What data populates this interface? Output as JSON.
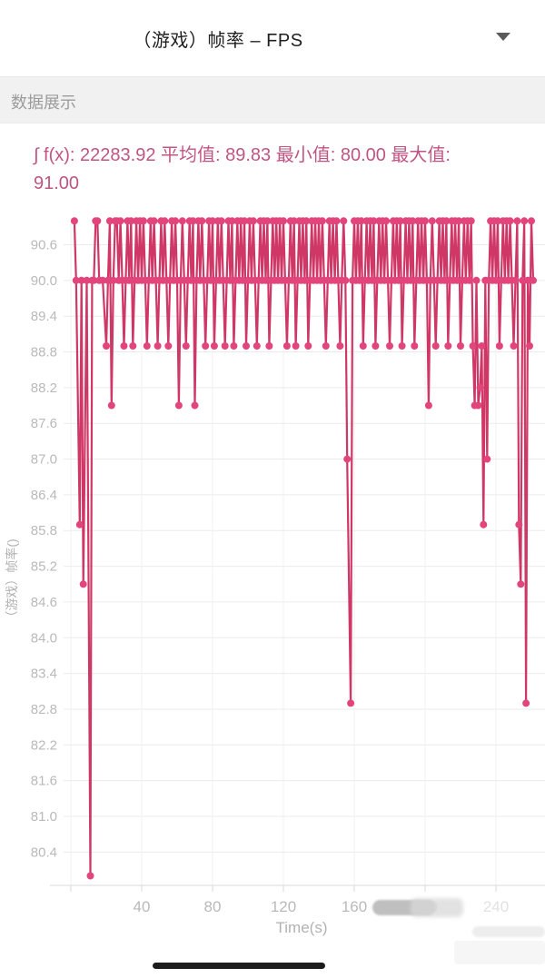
{
  "header": {
    "title": "（游戏）帧率 – FPS",
    "dropdown_icon": "caret-down"
  },
  "section": {
    "label": "数据展示"
  },
  "stats": {
    "integral": "22283.92",
    "average": "89.83",
    "min": "80.00",
    "max": "91.00",
    "display_line1": "∫ f(x): 22283.92 平均值: 89.83 最小值: 80.00 最大值:",
    "display_line2": "91.00"
  },
  "colors": {
    "accent_pink_line": "#cf3766",
    "accent_pink_point": "#e2457c",
    "stats_text": "#c05583",
    "grid_line": "#ebebeb",
    "axis_line": "#d9d9d9",
    "tick_label": "#b9b9b9",
    "faded_tick_label": "#e2e2e2"
  },
  "footer": {
    "home_indicator": true
  },
  "chart_data": {
    "type": "line",
    "title": "",
    "xlabel": "Time(s)",
    "ylabel": "（游戏）帧率()",
    "grid": true,
    "legend": "none",
    "xlim": [
      0,
      268
    ],
    "ylim": [
      79.8,
      91.1
    ],
    "x_ticks": [
      40,
      80,
      120,
      160,
      200,
      240
    ],
    "x_ticks_faded": [
      200,
      240
    ],
    "y_ticks": [
      80.4,
      81.0,
      81.6,
      82.2,
      82.8,
      83.4,
      84.0,
      84.6,
      85.2,
      85.8,
      86.4,
      87.0,
      87.6,
      88.2,
      88.8,
      89.4,
      90.0,
      90.6
    ],
    "line_color": "#cf3766",
    "point_color": "#e2457c",
    "points": [
      [
        2,
        91
      ],
      [
        3,
        90
      ],
      [
        5,
        85.9
      ],
      [
        6,
        90
      ],
      [
        7,
        84.9
      ],
      [
        9,
        90
      ],
      [
        11,
        80
      ],
      [
        12,
        90
      ],
      [
        13,
        90
      ],
      [
        14,
        91
      ],
      [
        15,
        91
      ],
      [
        16,
        90
      ],
      [
        18,
        90
      ],
      [
        20,
        88.9
      ],
      [
        21,
        90
      ],
      [
        22,
        91
      ],
      [
        23,
        87.9
      ],
      [
        24,
        90
      ],
      [
        25,
        91
      ],
      [
        26,
        91
      ],
      [
        27,
        90
      ],
      [
        28,
        91
      ],
      [
        29,
        90
      ],
      [
        30,
        88.9
      ],
      [
        31,
        90
      ],
      [
        32,
        91
      ],
      [
        33,
        90
      ],
      [
        34,
        91
      ],
      [
        35,
        88.9
      ],
      [
        36,
        90
      ],
      [
        37,
        91
      ],
      [
        38,
        90
      ],
      [
        39,
        91
      ],
      [
        40,
        90
      ],
      [
        41,
        91
      ],
      [
        42,
        90
      ],
      [
        43,
        88.9
      ],
      [
        44,
        90
      ],
      [
        45,
        91
      ],
      [
        46,
        90
      ],
      [
        47,
        91
      ],
      [
        48,
        90
      ],
      [
        49,
        88.9
      ],
      [
        50,
        90
      ],
      [
        51,
        91
      ],
      [
        52,
        90
      ],
      [
        53,
        91
      ],
      [
        54,
        90
      ],
      [
        55,
        88.9
      ],
      [
        56,
        90
      ],
      [
        57,
        91
      ],
      [
        58,
        90
      ],
      [
        59,
        91
      ],
      [
        60,
        90
      ],
      [
        61,
        87.9
      ],
      [
        62,
        90
      ],
      [
        63,
        91
      ],
      [
        64,
        90
      ],
      [
        65,
        88.9
      ],
      [
        66,
        90
      ],
      [
        67,
        91
      ],
      [
        68,
        90
      ],
      [
        69,
        91
      ],
      [
        70,
        87.9
      ],
      [
        71,
        90
      ],
      [
        72,
        91
      ],
      [
        73,
        90
      ],
      [
        74,
        91
      ],
      [
        75,
        90
      ],
      [
        76,
        88.9
      ],
      [
        77,
        90
      ],
      [
        78,
        91
      ],
      [
        79,
        90
      ],
      [
        80,
        91
      ],
      [
        81,
        88.9
      ],
      [
        82,
        90
      ],
      [
        83,
        91
      ],
      [
        84,
        90
      ],
      [
        85,
        91
      ],
      [
        86,
        90
      ],
      [
        87,
        88.9
      ],
      [
        88,
        90
      ],
      [
        89,
        91
      ],
      [
        90,
        90
      ],
      [
        91,
        91
      ],
      [
        92,
        88.9
      ],
      [
        93,
        90
      ],
      [
        94,
        91
      ],
      [
        95,
        90
      ],
      [
        96,
        91
      ],
      [
        97,
        90
      ],
      [
        98,
        91
      ],
      [
        99,
        88.9
      ],
      [
        100,
        90
      ],
      [
        101,
        91
      ],
      [
        102,
        90
      ],
      [
        103,
        91
      ],
      [
        104,
        90
      ],
      [
        105,
        88.9
      ],
      [
        106,
        90
      ],
      [
        107,
        91
      ],
      [
        108,
        90
      ],
      [
        109,
        91
      ],
      [
        110,
        90
      ],
      [
        111,
        91
      ],
      [
        112,
        88.9
      ],
      [
        113,
        90
      ],
      [
        114,
        91
      ],
      [
        115,
        90
      ],
      [
        116,
        91
      ],
      [
        117,
        90
      ],
      [
        118,
        91
      ],
      [
        119,
        90
      ],
      [
        120,
        91
      ],
      [
        121,
        90
      ],
      [
        122,
        88.9
      ],
      [
        123,
        90
      ],
      [
        124,
        91
      ],
      [
        125,
        90
      ],
      [
        126,
        91
      ],
      [
        127,
        88.9
      ],
      [
        128,
        90
      ],
      [
        129,
        91
      ],
      [
        130,
        90
      ],
      [
        131,
        91
      ],
      [
        132,
        90
      ],
      [
        133,
        91
      ],
      [
        134,
        88.9
      ],
      [
        135,
        90
      ],
      [
        136,
        91
      ],
      [
        137,
        90
      ],
      [
        138,
        91
      ],
      [
        139,
        90
      ],
      [
        140,
        91
      ],
      [
        141,
        90
      ],
      [
        142,
        91
      ],
      [
        143,
        90
      ],
      [
        144,
        88.9
      ],
      [
        145,
        90
      ],
      [
        146,
        91
      ],
      [
        147,
        90
      ],
      [
        148,
        91
      ],
      [
        149,
        90
      ],
      [
        150,
        91
      ],
      [
        151,
        90
      ],
      [
        152,
        88.9
      ],
      [
        153,
        90
      ],
      [
        154,
        91
      ],
      [
        155,
        90
      ],
      [
        156,
        87.0
      ],
      [
        158,
        82.9
      ],
      [
        159,
        90
      ],
      [
        160,
        91
      ],
      [
        161,
        90
      ],
      [
        162,
        91
      ],
      [
        163,
        90
      ],
      [
        164,
        91
      ],
      [
        165,
        88.9
      ],
      [
        166,
        90
      ],
      [
        167,
        91
      ],
      [
        168,
        90
      ],
      [
        169,
        91
      ],
      [
        170,
        90
      ],
      [
        171,
        91
      ],
      [
        172,
        88.9
      ],
      [
        173,
        90
      ],
      [
        174,
        91
      ],
      [
        175,
        90
      ],
      [
        176,
        91
      ],
      [
        177,
        90
      ],
      [
        178,
        91
      ],
      [
        179,
        90
      ],
      [
        180,
        88.9
      ],
      [
        181,
        90
      ],
      [
        182,
        91
      ],
      [
        183,
        90
      ],
      [
        184,
        91
      ],
      [
        185,
        90
      ],
      [
        186,
        91
      ],
      [
        187,
        88.9
      ],
      [
        188,
        90
      ],
      [
        189,
        91
      ],
      [
        190,
        90
      ],
      [
        191,
        91
      ],
      [
        192,
        90
      ],
      [
        193,
        91
      ],
      [
        194,
        88.9
      ],
      [
        195,
        90
      ],
      [
        196,
        91
      ],
      [
        197,
        90
      ],
      [
        198,
        91
      ],
      [
        199,
        90
      ],
      [
        200,
        91
      ],
      [
        201,
        90
      ],
      [
        202,
        87.9
      ],
      [
        203,
        90
      ],
      [
        204,
        91
      ],
      [
        205,
        90
      ],
      [
        206,
        88.9
      ],
      [
        207,
        90
      ],
      [
        208,
        91
      ],
      [
        209,
        90
      ],
      [
        210,
        91
      ],
      [
        211,
        90
      ],
      [
        212,
        91
      ],
      [
        213,
        88.9
      ],
      [
        214,
        90
      ],
      [
        215,
        91
      ],
      [
        216,
        90
      ],
      [
        217,
        91
      ],
      [
        218,
        90
      ],
      [
        219,
        91
      ],
      [
        220,
        88.9
      ],
      [
        221,
        90
      ],
      [
        222,
        91
      ],
      [
        223,
        90
      ],
      [
        224,
        91
      ],
      [
        225,
        90
      ],
      [
        226,
        91
      ],
      [
        227,
        88.9
      ],
      [
        228,
        87.9
      ],
      [
        229,
        90
      ],
      [
        230,
        87.9
      ],
      [
        231,
        88.2
      ],
      [
        232,
        88.9
      ],
      [
        233,
        85.9
      ],
      [
        234,
        90
      ],
      [
        235,
        87.0
      ],
      [
        236,
        90
      ],
      [
        237,
        91
      ],
      [
        238,
        90
      ],
      [
        239,
        91
      ],
      [
        240,
        90
      ],
      [
        241,
        91
      ],
      [
        242,
        88.9
      ],
      [
        243,
        90
      ],
      [
        244,
        91
      ],
      [
        245,
        90
      ],
      [
        246,
        91
      ],
      [
        247,
        90
      ],
      [
        248,
        91
      ],
      [
        249,
        90
      ],
      [
        250,
        88.9
      ],
      [
        251,
        90
      ],
      [
        252,
        91
      ],
      [
        253,
        85.9
      ],
      [
        254,
        84.9
      ],
      [
        255,
        90
      ],
      [
        256,
        91
      ],
      [
        257,
        82.9
      ],
      [
        258,
        90
      ],
      [
        259,
        88.9
      ],
      [
        260,
        91
      ],
      [
        261,
        90
      ]
    ]
  }
}
